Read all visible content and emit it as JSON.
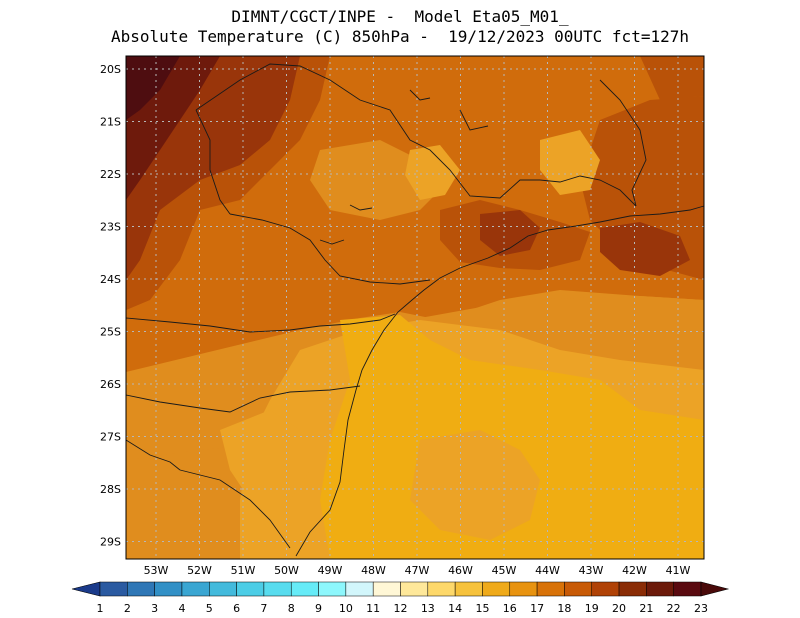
{
  "title": {
    "line1": "DIMNT/CGCT/INPE -  Model Eta05_M01_",
    "line2": "Absolute Temperature (C) 850hPa -  19/12/2023 00UTC fct=127h"
  },
  "map": {
    "lat_labels": [
      "20S",
      "21S",
      "22S",
      "23S",
      "24S",
      "25S",
      "26S",
      "27S",
      "28S",
      "29S"
    ],
    "lon_labels": [
      "53W",
      "52W",
      "51W",
      "50W",
      "49W",
      "48W",
      "47W",
      "46W",
      "45W",
      "44W",
      "43W",
      "42W",
      "41W"
    ]
  },
  "colorbar": {
    "labels": [
      "1",
      "2",
      "3",
      "4",
      "5",
      "6",
      "7",
      "8",
      "9",
      "10",
      "11",
      "12",
      "13",
      "14",
      "15",
      "16",
      "17",
      "18",
      "19",
      "20",
      "21",
      "22",
      "23"
    ],
    "colors": [
      "#1c3f8c",
      "#2a5aa1",
      "#2f77b6",
      "#3290c6",
      "#3aa6d2",
      "#43badc",
      "#4ccde6",
      "#58dcee",
      "#66ebf7",
      "#8df7fc",
      "#d2f6fb",
      "#fff7d6",
      "#fee89a",
      "#fdd86a",
      "#f6c23c",
      "#efaa1a",
      "#e89310",
      "#d87208",
      "#c85a06",
      "#b04206",
      "#8a2c06",
      "#6c1a0a",
      "#5a0a10"
    ],
    "low_arrow_color": "#1a3a8a",
    "high_arrow_color": "#4a0a0a"
  },
  "palette": {
    "t16": "#f0ad12",
    "t17": "#eca326",
    "t18": "#e08d1e",
    "t19": "#d06c0c",
    "t20": "#b95208",
    "t21": "#99350a",
    "t22": "#6e1a0c",
    "t23": "#4e0d10"
  }
}
